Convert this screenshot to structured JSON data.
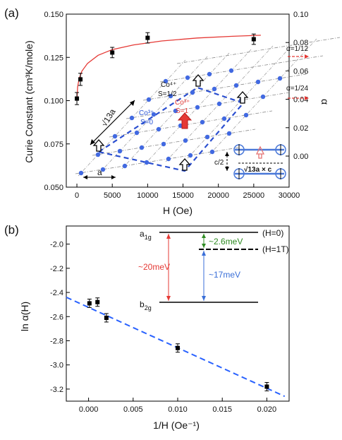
{
  "colors": {
    "fit_curve": "#e53935",
    "fit_line": "#2962ff",
    "lattice_blue": "#3a5fcd",
    "atom": "#4169e1",
    "gap_red": "#e53935",
    "gap_green": "#2e8b22",
    "gap_blue": "#3a6fd8",
    "cell_text_blue": "#2a55d4"
  },
  "panel_a": {
    "label": "(a)",
    "ylabel": "Curie Constant (cm³K/mole)",
    "xlabel": "H (Oe)",
    "right_ylabel": "α",
    "alpha_ticks": [
      "0.10",
      "0.08",
      "0.06",
      "0.04",
      "0.02",
      "0.00"
    ],
    "marker_1_12": "α=1/12",
    "marker_1_24": "α=1/24",
    "lattice": {
      "co4_label": "Co⁴⁺",
      "co4_spin": "S=1/2",
      "co3_ls_label": "Co³⁺",
      "co3_ls_spin": "S=0",
      "co3_hs_label": "Co³⁺",
      "co3_hs_spin": "S=1",
      "sqrt13_label": "√13a",
      "a_label": "a",
      "c2_label": "c/2",
      "sqrt13_c_label": "√13a × c"
    }
  },
  "panel_b": {
    "label": "(b)",
    "ylabel": "ln α(H)",
    "xlabel": "1/H (Oe⁻¹)",
    "levels": {
      "a1g": "a1g",
      "b2g": "b2g",
      "h0": "(H=0)",
      "h1t": "(H=1T)",
      "gap_total": "~20meV",
      "gap_small": "~2.6meV",
      "gap_big": "~17meV"
    }
  },
  "chart_data": [
    {
      "type": "scatter",
      "title": "",
      "xlabel": "H (Oe)",
      "ylabel": "Curie Constant (cm³K/mole)",
      "xlim": [
        -1500,
        30000
      ],
      "ylim": [
        0.05,
        0.15
      ],
      "x_ticks": [
        0,
        5000,
        10000,
        15000,
        20000,
        25000,
        30000
      ],
      "y_ticks": [
        0.05,
        0.075,
        0.1,
        0.125,
        0.15
      ],
      "y_tick_labels": [
        "0.050",
        "0.075",
        "0.100",
        "0.125",
        "0.150"
      ],
      "x": [
        0,
        500,
        5000,
        10000,
        25000
      ],
      "y": [
        0.1012,
        0.1123,
        0.1278,
        0.1363,
        0.1355
      ],
      "yerr": [
        0.0035,
        0.0035,
        0.003,
        0.003,
        0.003
      ],
      "fit_curve": {
        "x": [
          0,
          100,
          300,
          700,
          1500,
          3000,
          5000,
          8000,
          12000,
          17000,
          22000,
          26000
        ],
        "y": [
          0.1,
          0.108,
          0.1125,
          0.117,
          0.1215,
          0.1262,
          0.1295,
          0.1322,
          0.1345,
          0.1362,
          0.1372,
          0.1378
        ]
      }
    },
    {
      "type": "scatter",
      "title": "",
      "xlabel": "1/H (Oe⁻¹)",
      "ylabel": "ln α(H)",
      "xlim": [
        -0.0025,
        0.0225
      ],
      "ylim": [
        -3.3,
        -1.85
      ],
      "x_ticks": [
        0.0,
        0.005,
        0.01,
        0.015,
        0.02
      ],
      "x_tick_labels": [
        "0.000",
        "0.005",
        "0.010",
        "0.015",
        "0.020"
      ],
      "y_ticks": [
        -3.2,
        -3.0,
        -2.8,
        -2.6,
        -2.4,
        -2.2,
        -2.0
      ],
      "y_tick_labels": [
        "-3.2",
        "-3.0",
        "-2.8",
        "-2.6",
        "-2.4",
        "-2.2",
        "-2.0"
      ],
      "x": [
        0.0001,
        0.001,
        0.002,
        0.01,
        0.02
      ],
      "y": [
        -2.49,
        -2.48,
        -2.61,
        -2.86,
        -3.18
      ],
      "yerr": [
        0.035,
        0.035,
        0.035,
        0.035,
        0.035
      ],
      "fit_line": {
        "x": [
          -0.0025,
          0.022
        ],
        "y": [
          -2.44,
          -3.26
        ]
      }
    }
  ]
}
